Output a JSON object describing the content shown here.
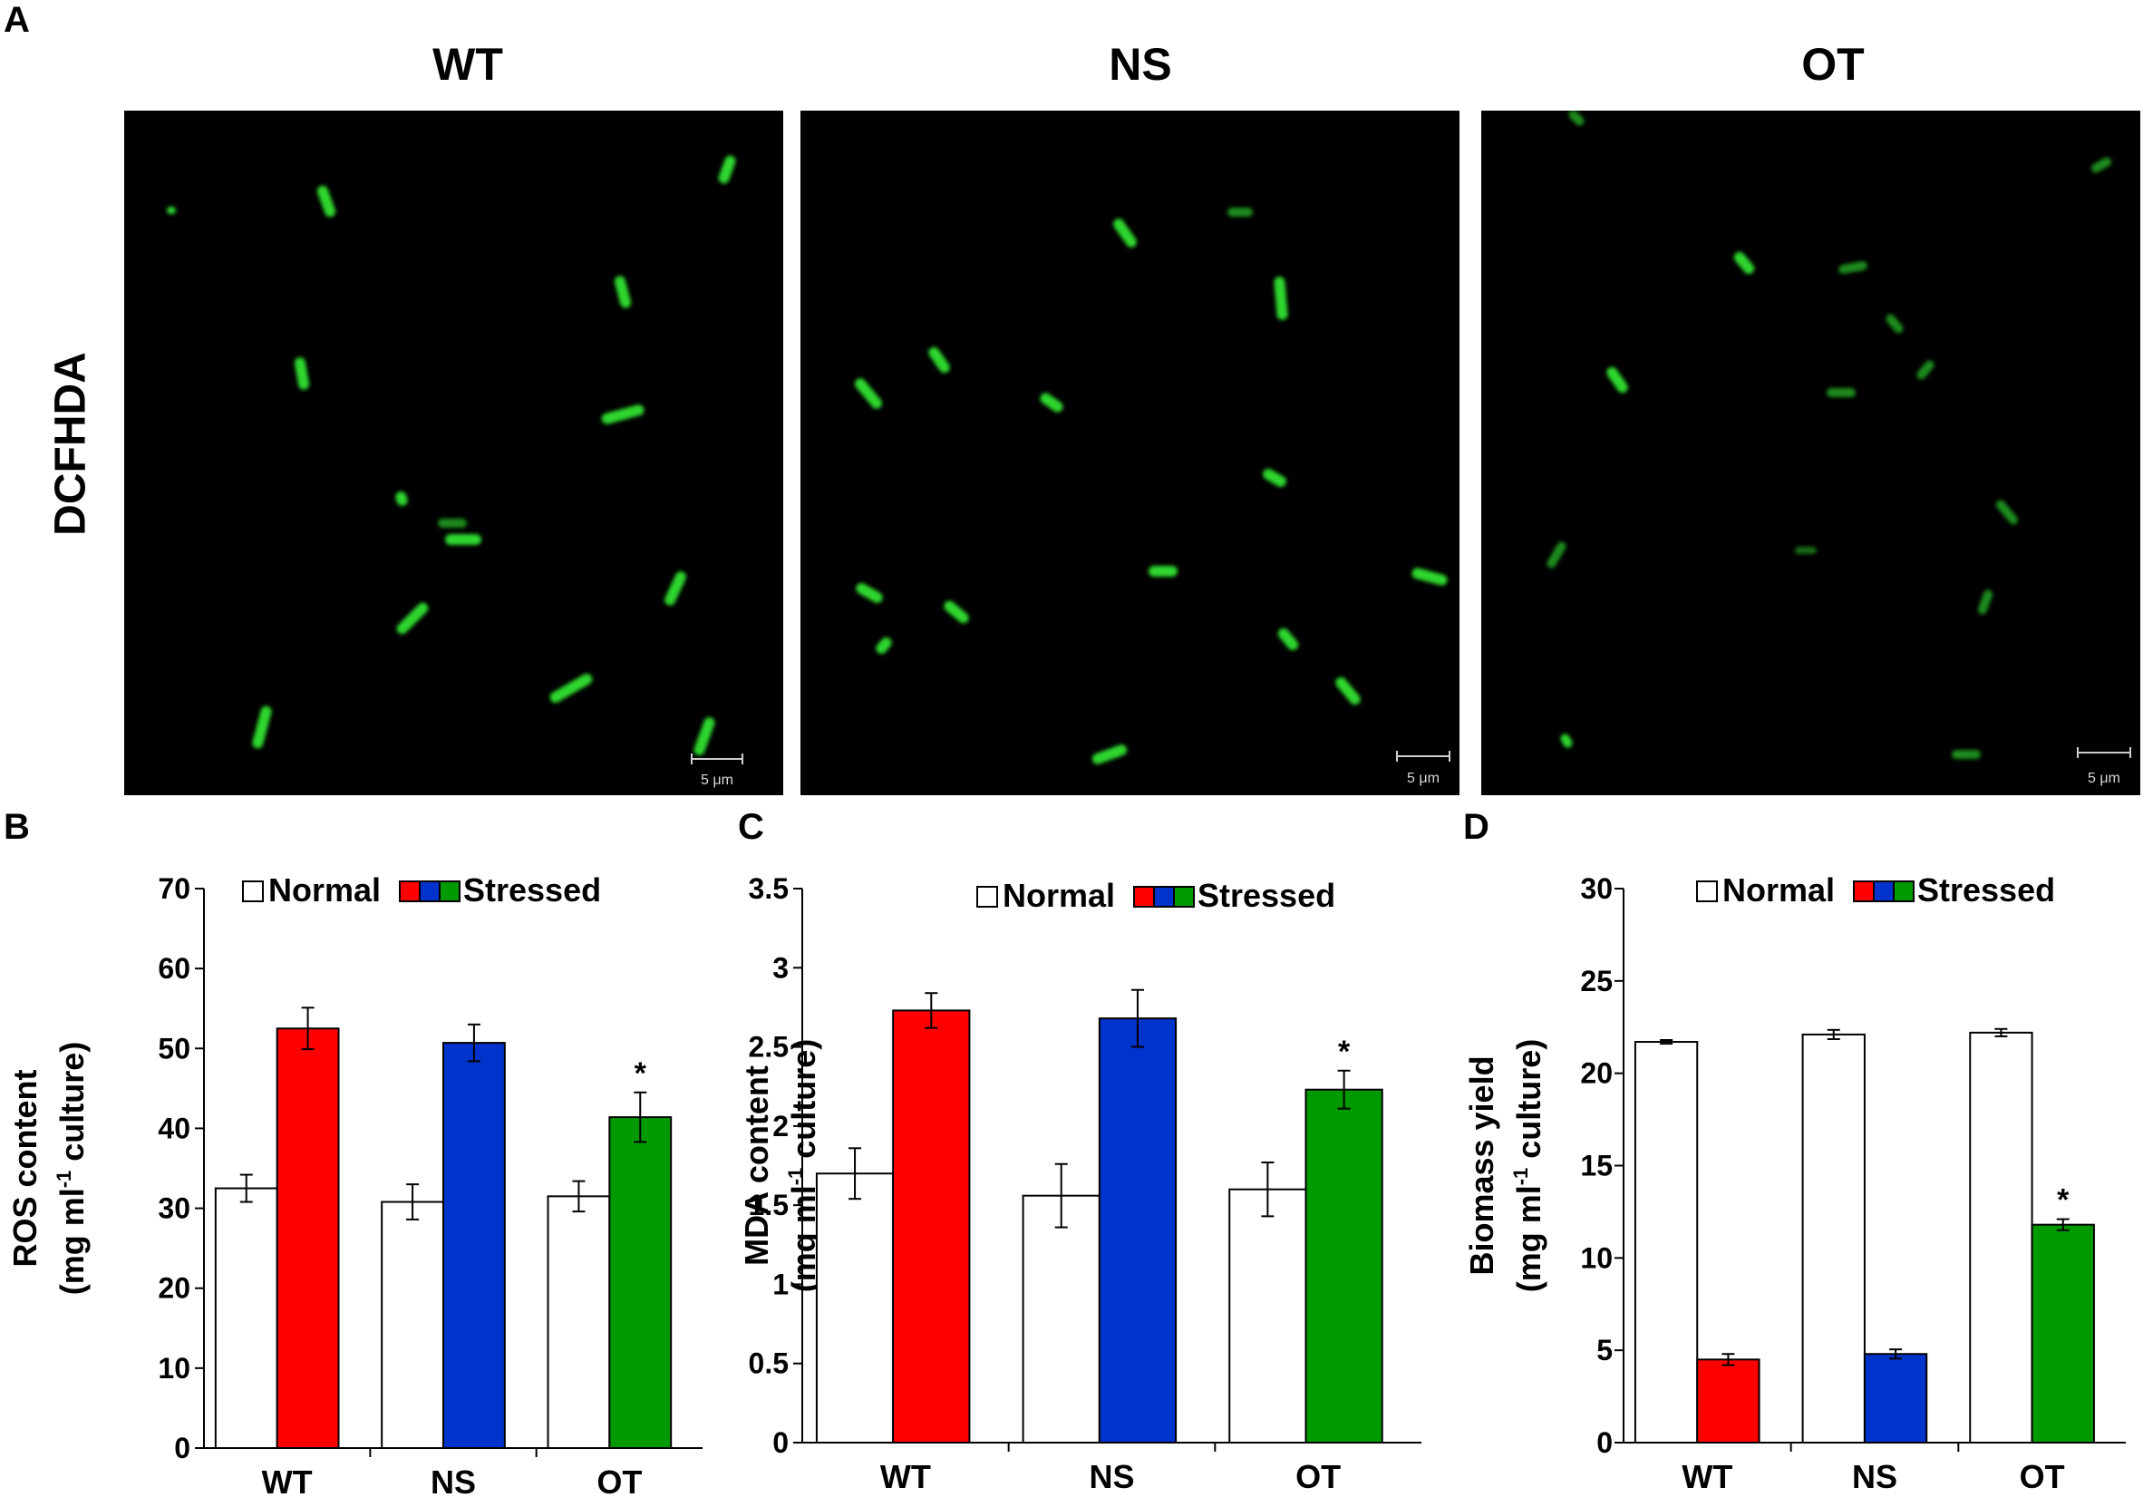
{
  "panel_letters": {
    "a": "A",
    "b": "B",
    "c": "C",
    "d": "D"
  },
  "micrographs": {
    "row_label": "DCFHDA",
    "scale_bar_label": "5 μm",
    "panels": [
      {
        "title": "WT"
      },
      {
        "title": "NS"
      },
      {
        "title": "OT"
      }
    ]
  },
  "legend": {
    "normal": "Normal",
    "stressed": "Stressed",
    "normal_color": "#ffffff",
    "stressed_colors": [
      "#ff0000",
      "#0033cc",
      "#009900"
    ]
  },
  "chart_data": [
    {
      "type": "bar",
      "categories": [
        "WT",
        "NS",
        "OT"
      ],
      "ylabel_line1": "ROS content",
      "ylabel_line2_prefix": "(mg ml",
      "ylabel_sup": "-1",
      "ylabel_line2_suffix": " culture)",
      "ylim": [
        0,
        70
      ],
      "yticks": [
        0,
        10,
        20,
        30,
        40,
        50,
        60,
        70
      ],
      "series": [
        {
          "name": "Normal",
          "values": [
            32.5,
            30.8,
            31.5
          ],
          "errors": [
            1.7,
            2.2,
            1.9
          ]
        },
        {
          "name": "Stressed",
          "values": [
            52.5,
            50.7,
            41.4
          ],
          "errors": [
            2.6,
            2.3,
            3.1
          ]
        }
      ],
      "significance": [
        "",
        "",
        "*"
      ]
    },
    {
      "type": "bar",
      "categories": [
        "WT",
        "NS",
        "OT"
      ],
      "ylabel_line1": "MDA content",
      "ylabel_line2_prefix": "(mg ml",
      "ylabel_sup": "-1",
      "ylabel_line2_suffix": " culture)",
      "ylim": [
        0,
        3.5
      ],
      "yticks": [
        0,
        0.5,
        1,
        1.5,
        2,
        2.5,
        3,
        3.5
      ],
      "series": [
        {
          "name": "Normal",
          "values": [
            1.7,
            1.56,
            1.6
          ],
          "errors": [
            0.16,
            0.2,
            0.17
          ]
        },
        {
          "name": "Stressed",
          "values": [
            2.73,
            2.68,
            2.23
          ],
          "errors": [
            0.11,
            0.18,
            0.12
          ]
        }
      ],
      "significance": [
        "",
        "",
        "*"
      ]
    },
    {
      "type": "bar",
      "categories": [
        "WT",
        "NS",
        "OT"
      ],
      "ylabel_line1": "Biomass yield",
      "ylabel_line2_prefix": "(mg ml",
      "ylabel_sup": "-1",
      "ylabel_line2_suffix": " culture)",
      "ylim": [
        0,
        30
      ],
      "yticks": [
        0,
        5,
        10,
        15,
        20,
        25,
        30
      ],
      "series": [
        {
          "name": "Normal",
          "values": [
            21.7,
            22.1,
            22.2
          ],
          "errors": [
            0.1,
            0.25,
            0.2
          ]
        },
        {
          "name": "Stressed",
          "values": [
            4.5,
            4.8,
            11.8
          ],
          "errors": [
            0.3,
            0.25,
            0.3
          ]
        }
      ],
      "significance": [
        "",
        "",
        "*"
      ]
    }
  ]
}
